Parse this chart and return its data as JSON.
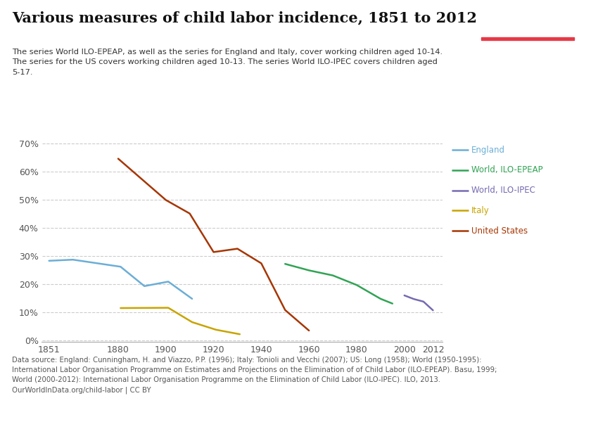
{
  "title": "Various measures of child labor incidence, 1851 to 2012",
  "subtitle": "The series World ILO-EPEAP, as well as the series for England and Italy, cover working children aged 10-14.\nThe series for the US covers working children aged 10-13. The series World ILO-IPEC covers children aged\n5-17.",
  "footnote": "Data source: England: Cunningham, H. and Viazzo, P.P. (1996); Italy: Tonioli and Vecchi (2007); US: Long (1958); World (1950-1995):\nInternational Labor Organisation Programme on Estimates and Projections on the Elimination of of Child Labor (ILO-EPEAP). Basu, 1999;\nWorld (2000-2012): International Labor Organisation Programme on the Elimination of Child Labor (ILO-IPEC). ILO, 2013.\nOurWorldInData.org/child-labor | CC BY",
  "series": {
    "England": {
      "x": [
        1851,
        1861,
        1881,
        1891,
        1901,
        1911
      ],
      "y": [
        0.283,
        0.287,
        0.262,
        0.193,
        0.209,
        0.148
      ],
      "color": "#6baed6"
    },
    "World, ILO-EPEAP": {
      "x": [
        1950,
        1960,
        1970,
        1980,
        1990,
        1995
      ],
      "y": [
        0.272,
        0.249,
        0.231,
        0.197,
        0.148,
        0.131
      ],
      "color": "#31a354"
    },
    "World, ILO-IPEC": {
      "x": [
        2000,
        2004,
        2008,
        2012
      ],
      "y": [
        0.16,
        0.147,
        0.138,
        0.107
      ],
      "color": "#756bb1"
    },
    "Italy": {
      "x": [
        1881,
        1901,
        1911,
        1921,
        1931
      ],
      "y": [
        0.115,
        0.116,
        0.065,
        0.038,
        0.022
      ],
      "color": "#c8a400"
    },
    "United States": {
      "x": [
        1880,
        1900,
        1910,
        1920,
        1930,
        1940,
        1950,
        1960
      ],
      "y": [
        0.646,
        0.499,
        0.451,
        0.314,
        0.326,
        0.274,
        0.108,
        0.035
      ],
      "color": "#a63603"
    }
  },
  "xlim": [
    1848,
    2016
  ],
  "ylim": [
    -0.005,
    0.73
  ],
  "yticks": [
    0.0,
    0.1,
    0.2,
    0.3,
    0.4,
    0.5,
    0.6,
    0.7
  ],
  "ytick_labels": [
    "0%",
    "10%",
    "20%",
    "30%",
    "40%",
    "50%",
    "60%",
    "70%"
  ],
  "xticks": [
    1851,
    1880,
    1900,
    1920,
    1940,
    1960,
    1980,
    2000,
    2012
  ],
  "background_color": "#ffffff",
  "grid_color": "#cccccc",
  "owid_box_bg": "#002147",
  "owid_red": "#e63946"
}
